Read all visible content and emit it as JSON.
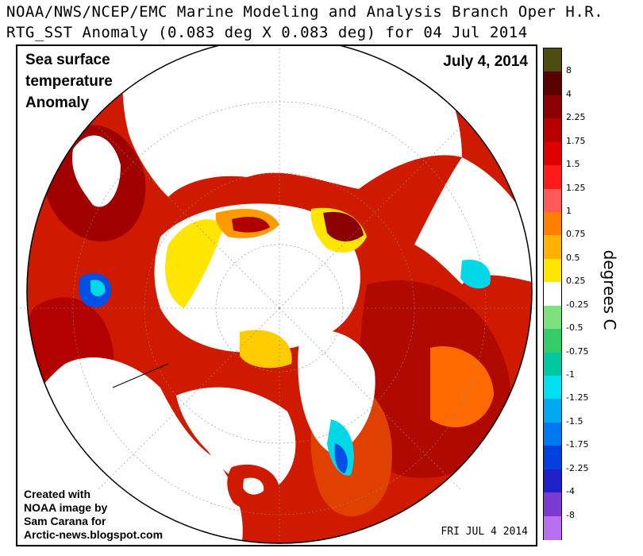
{
  "header": {
    "line1": "NOAA/NWS/NCEP/EMC Marine Modeling and Analysis Branch Oper H.R.",
    "line2": "RTG_SST Anomaly (0.083 deg X 0.083 deg) for 04 Jul 2014"
  },
  "overlay": {
    "title_line1": "Sea surface",
    "title_line2": "temperature",
    "title_line3": "Anomaly",
    "date": "July 4, 2014",
    "credit_line1": "Created with",
    "credit_line2": "NOAA image by",
    "credit_line3": "Sam Carana for",
    "credit_line4": "Arctic-news.blogspot.com",
    "stamp": "FRI JUL 4 2014"
  },
  "legend": {
    "units": "degrees C",
    "labels": [
      "8",
      "4",
      "2.25",
      "1.75",
      "1.5",
      "1.25",
      "1",
      "0.75",
      "0.5",
      "0.25",
      "-0.25",
      "-0.5",
      "-0.75",
      "-1",
      "-1.25",
      "-1.5",
      "-1.75",
      "-2.25",
      "-4",
      "-8"
    ],
    "colors": [
      "#4d4d0d",
      "#5a0000",
      "#8b0000",
      "#b80000",
      "#e00000",
      "#ff1a1a",
      "#ff5a5a",
      "#ff7f00",
      "#ffb000",
      "#ffe600",
      "#ffffff",
      "#7ce07c",
      "#33cc66",
      "#00c8a0",
      "#00e0f0",
      "#00a8f0",
      "#0078f0",
      "#0040e0",
      "#2020c8",
      "#7a3cd0",
      "#b870f0"
    ]
  },
  "colors": {
    "warm_strong": "#8b0000",
    "warm": "#c80000",
    "warm_mid": "#e03000",
    "orange": "#ff9a00",
    "yellow": "#ffe600",
    "cold": "#00d8e8",
    "very_cold": "#0050e8"
  }
}
